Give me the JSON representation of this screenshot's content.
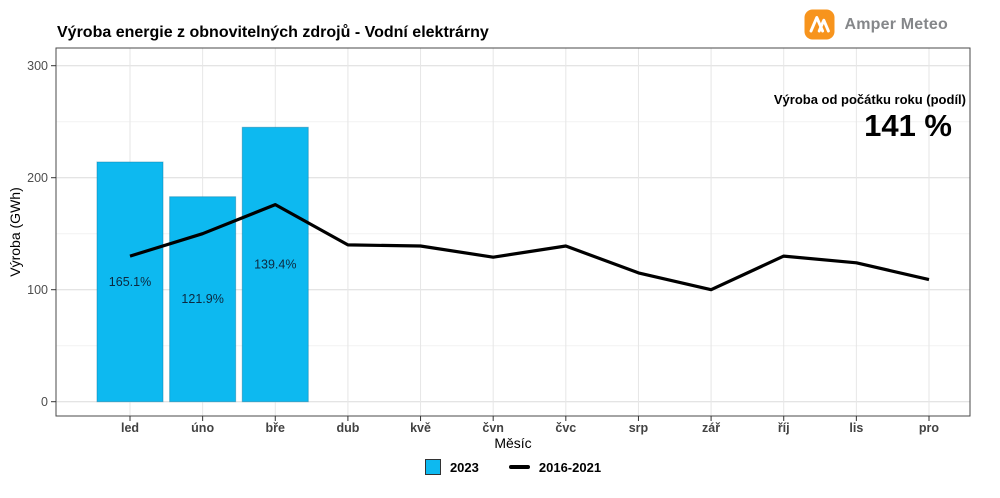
{
  "header": {
    "logo_text": "Amper Meteo",
    "logo_color": "#f7941d"
  },
  "chart_data": {
    "type": "bar",
    "title": "Výroba energie z obnovitelných zdrojů - Vodní elektrárny",
    "xlabel": "Měsíc",
    "ylabel": "Výroba (GWh)",
    "categories": [
      "led",
      "úno",
      "bře",
      "dub",
      "kvě",
      "čvn",
      "čvc",
      "srp",
      "zář",
      "říj",
      "lis",
      "pro"
    ],
    "series": [
      {
        "name": "2023",
        "type": "bar",
        "color": "#0db9f0",
        "values": [
          214,
          183,
          245,
          null,
          null,
          null,
          null,
          null,
          null,
          null,
          null,
          null
        ]
      },
      {
        "name": "2016-2021",
        "type": "line",
        "color": "#000000",
        "values": [
          130,
          150,
          176,
          140,
          139,
          129,
          139,
          115,
          100,
          130,
          124,
          109
        ]
      }
    ],
    "bar_labels": [
      "165.1%",
      "121.9%",
      "139.4%"
    ],
    "yticks": [
      0,
      100,
      200,
      300
    ],
    "yticks_minor": [
      50,
      150,
      250
    ],
    "ylim": [
      0,
      316
    ],
    "grid": true,
    "legend_position": "bottom",
    "annotation": {
      "label": "Výroba od počátku roku (podíl)",
      "value": "141 %"
    }
  }
}
